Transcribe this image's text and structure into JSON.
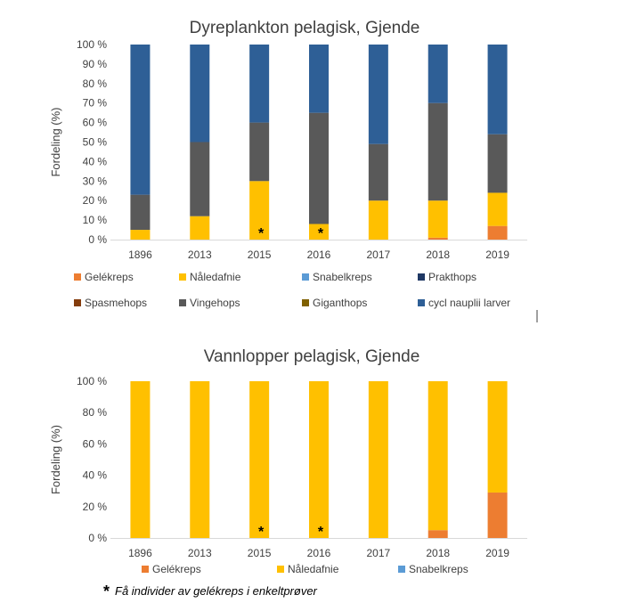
{
  "colors": {
    "Gelékreps": "#ED7D31",
    "Nåledafnie": "#FFC000",
    "Snabelkreps": "#5B9BD5",
    "Prakthops": "#1F3864",
    "Spasmehops": "#843C0C",
    "Vingehops": "#595959",
    "Giganthops": "#7F6000",
    "cycl nauplii larver": "#2E5F96"
  },
  "footnote": {
    "star": "*",
    "text": "Få  individer av gelékreps i enkeltprøver"
  },
  "chart_data": [
    {
      "type": "bar",
      "stacked": true,
      "title": "Dyreplankton pelagisk, Gjende",
      "ylabel": "Fordeling (%)",
      "xlabel": "",
      "ylim": [
        0,
        100
      ],
      "yticks": [
        0,
        10,
        20,
        30,
        40,
        50,
        60,
        70,
        80,
        90,
        100
      ],
      "ytick_labels": [
        "0 %",
        "10 %",
        "20 %",
        "30 %",
        "40 %",
        "50 %",
        "60 %",
        "70 %",
        "80 %",
        "90 %",
        "100 %"
      ],
      "categories": [
        "1896",
        "2013",
        "2015",
        "2016",
        "2017",
        "2018",
        "2019"
      ],
      "annotations": [
        {
          "category": "2015",
          "text": "*"
        },
        {
          "category": "2016",
          "text": "*"
        }
      ],
      "legend_position": "bottom",
      "legend": [
        "Gelékreps",
        "Nåledafnie",
        "Snabelkreps",
        "Prakthops",
        "Spasmehops",
        "Vingehops",
        "Giganthops",
        "cycl nauplii larver"
      ],
      "series": [
        {
          "name": "Gelékreps",
          "values": [
            0,
            0,
            0,
            0,
            0,
            1,
            7
          ]
        },
        {
          "name": "Nåledafnie",
          "values": [
            5,
            12,
            30,
            8,
            20,
            19,
            17
          ]
        },
        {
          "name": "Snabelkreps",
          "values": [
            0,
            0,
            0,
            0,
            0,
            0,
            0
          ]
        },
        {
          "name": "Prakthops",
          "values": [
            0,
            0,
            0,
            0,
            0,
            0,
            0
          ]
        },
        {
          "name": "Spasmehops",
          "values": [
            0,
            0,
            0,
            0,
            0,
            0,
            0
          ]
        },
        {
          "name": "Vingehops",
          "values": [
            18,
            38,
            30,
            57,
            29,
            50,
            30
          ]
        },
        {
          "name": "Giganthops",
          "values": [
            0,
            0,
            0,
            0,
            0,
            0,
            0
          ]
        },
        {
          "name": "cycl nauplii larver",
          "values": [
            77,
            50,
            40,
            35,
            51,
            30,
            46
          ]
        }
      ]
    },
    {
      "type": "bar",
      "stacked": true,
      "title": "Vannlopper pelagisk, Gjende",
      "ylabel": "Fordeling (%)",
      "xlabel": "",
      "ylim": [
        0,
        100
      ],
      "yticks": [
        0,
        20,
        40,
        60,
        80,
        100
      ],
      "ytick_labels": [
        "0 %",
        "20 %",
        "40 %",
        "60 %",
        "80 %",
        "100 %"
      ],
      "categories": [
        "1896",
        "2013",
        "2015",
        "2016",
        "2017",
        "2018",
        "2019"
      ],
      "annotations": [
        {
          "category": "2015",
          "text": "*"
        },
        {
          "category": "2016",
          "text": "*"
        }
      ],
      "legend_position": "bottom",
      "legend": [
        "Gelékreps",
        "Nåledafnie",
        "Snabelkreps"
      ],
      "series": [
        {
          "name": "Gelékreps",
          "values": [
            0,
            0,
            0,
            0,
            0,
            5,
            29
          ]
        },
        {
          "name": "Nåledafnie",
          "values": [
            100,
            100,
            100,
            100,
            100,
            95,
            71
          ]
        },
        {
          "name": "Snabelkreps",
          "values": [
            0,
            0,
            0,
            0,
            0,
            0,
            0
          ]
        }
      ]
    }
  ]
}
